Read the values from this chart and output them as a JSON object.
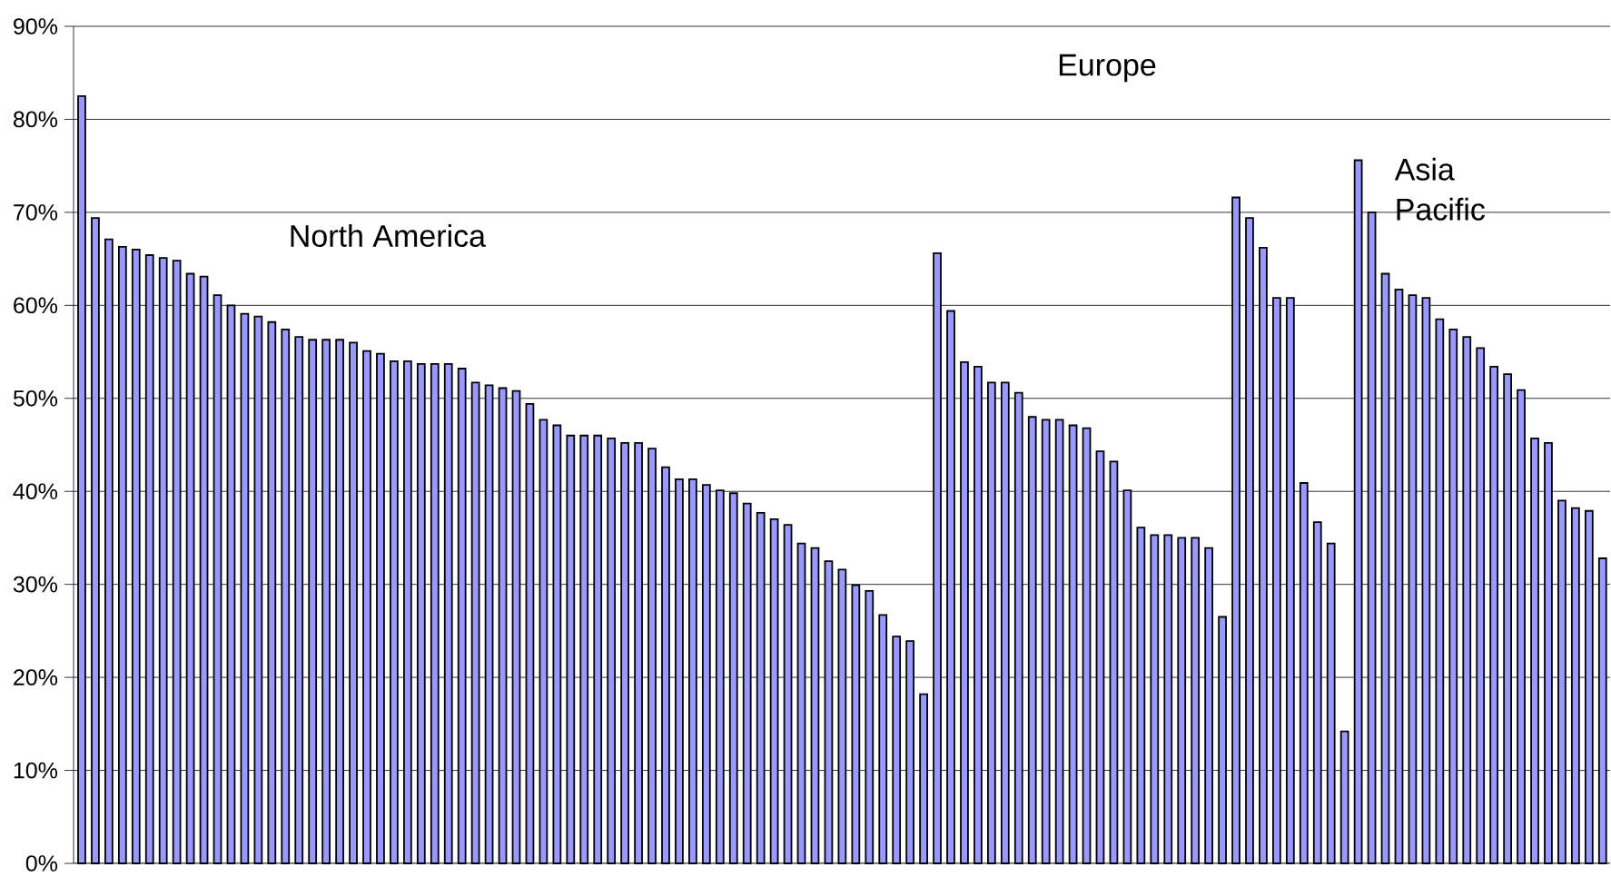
{
  "chart_data": {
    "type": "bar",
    "categories": [
      null,
      null,
      null,
      null,
      null,
      null,
      null,
      null,
      null,
      null,
      null,
      null,
      null,
      null,
      null,
      null,
      null,
      null,
      null,
      null,
      null,
      null,
      null,
      null,
      null,
      null,
      null,
      null,
      null,
      null,
      null,
      null,
      null,
      null,
      null,
      null,
      null,
      null,
      null,
      null,
      null,
      null,
      null,
      null,
      null,
      null,
      null,
      null,
      null,
      null,
      null,
      null,
      null,
      null,
      null,
      null,
      null,
      null,
      null,
      null,
      null,
      null,
      null,
      null,
      null,
      null,
      null,
      null,
      null,
      null,
      null,
      null,
      null,
      null,
      null,
      null,
      null,
      null,
      null,
      null,
      null,
      null,
      null,
      null,
      null,
      null,
      null,
      null,
      null,
      null,
      null,
      null,
      null,
      null,
      null,
      null,
      null,
      null,
      null,
      null,
      null,
      null,
      null,
      null,
      null,
      null,
      null,
      null,
      null,
      null,
      null,
      null,
      null
    ],
    "values": [
      82.5,
      69.4,
      67.1,
      66.3,
      66.0,
      65.4,
      65.1,
      64.8,
      63.4,
      63.1,
      61.1,
      60.0,
      59.1,
      58.8,
      58.2,
      57.4,
      56.6,
      56.3,
      56.3,
      56.3,
      56.0,
      55.1,
      54.8,
      54.0,
      54.0,
      53.7,
      53.7,
      53.7,
      53.2,
      51.7,
      51.4,
      51.1,
      50.8,
      49.4,
      47.7,
      47.1,
      46.0,
      46.0,
      46.0,
      45.7,
      45.2,
      45.2,
      44.6,
      42.6,
      41.3,
      41.3,
      40.7,
      40.1,
      39.8,
      38.7,
      37.7,
      37.0,
      36.4,
      34.4,
      33.9,
      32.5,
      31.6,
      29.9,
      29.3,
      26.7,
      24.4,
      23.9,
      18.2,
      65.6,
      59.4,
      53.9,
      53.4,
      51.7,
      51.7,
      50.6,
      48.0,
      47.7,
      47.7,
      47.1,
      46.8,
      44.3,
      43.2,
      40.1,
      36.1,
      35.3,
      35.3,
      35.0,
      35.0,
      33.9,
      26.5,
      71.6,
      69.4,
      66.2,
      60.8,
      60.8,
      40.9,
      36.7,
      34.4,
      14.2,
      75.6,
      70.0,
      63.4,
      61.7,
      61.1,
      60.8,
      58.5,
      57.4,
      56.6,
      55.4,
      53.4,
      52.6,
      50.9,
      45.7,
      45.2,
      39.0,
      38.2,
      37.9,
      32.8
    ],
    "color": "#9999ff",
    "ylim": [
      0,
      90
    ],
    "yticks": [
      {
        "value": 0,
        "label": "0%"
      },
      {
        "value": 10,
        "label": "10%"
      },
      {
        "value": 20,
        "label": "20%"
      },
      {
        "value": 30,
        "label": "30%"
      },
      {
        "value": 40,
        "label": "40%"
      },
      {
        "value": 50,
        "label": "50%"
      },
      {
        "value": 60,
        "label": "60%"
      },
      {
        "value": 70,
        "label": "70%"
      },
      {
        "value": 80,
        "label": "80%"
      },
      {
        "value": 90,
        "label": "90%"
      }
    ],
    "grid": "y",
    "annotations": [
      "North America",
      "Europe",
      "Asia Pacific"
    ]
  }
}
